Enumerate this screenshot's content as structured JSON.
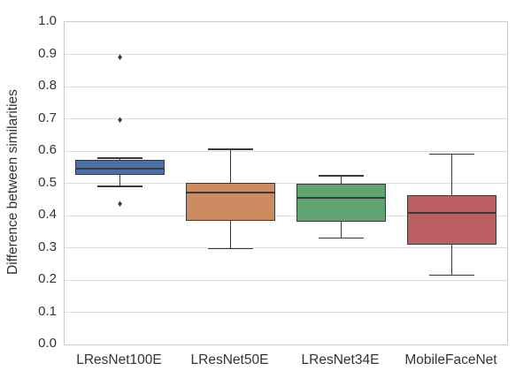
{
  "chart_data": {
    "type": "box",
    "title": "",
    "xlabel": "",
    "ylabel": "Difference between similarities",
    "ylim": [
      0.0,
      1.0
    ],
    "ytick_step": 0.1,
    "ytick_labels": [
      "0.0",
      "0.1",
      "0.2",
      "0.3",
      "0.4",
      "0.5",
      "0.6",
      "0.7",
      "0.8",
      "0.9",
      "1.0"
    ],
    "grid": "horizontal-only",
    "legend": "none",
    "categories": [
      "LResNet100E",
      "LResNet50E",
      "LResNet34E",
      "MobileFaceNet"
    ],
    "series": [
      {
        "name": "LResNet100E",
        "color": "#4d6fa8",
        "whisker_low": 0.49,
        "q1": 0.527,
        "median": 0.545,
        "q3": 0.572,
        "whisker_high": 0.578,
        "outliers": [
          0.89,
          0.695,
          0.435
        ]
      },
      {
        "name": "LResNet50E",
        "color": "#cd8b62",
        "whisker_low": 0.297,
        "q1": 0.383,
        "median": 0.47,
        "q3": 0.502,
        "whisker_high": 0.605,
        "outliers": []
      },
      {
        "name": "LResNet34E",
        "color": "#5fa471",
        "whisker_low": 0.33,
        "q1": 0.382,
        "median": 0.455,
        "q3": 0.498,
        "whisker_high": 0.523,
        "outliers": []
      },
      {
        "name": "MobileFaceNet",
        "color": "#bb5f63",
        "whisker_low": 0.215,
        "q1": 0.31,
        "median": 0.408,
        "q3": 0.463,
        "whisker_high": 0.59,
        "outliers": []
      }
    ],
    "style": {
      "edge_color": "#3a3a3a",
      "gridline_color": "#dcdcdc",
      "spine_color": "#cbcbcb",
      "text_color": "#333333",
      "outlier_marker": "diamond"
    }
  }
}
